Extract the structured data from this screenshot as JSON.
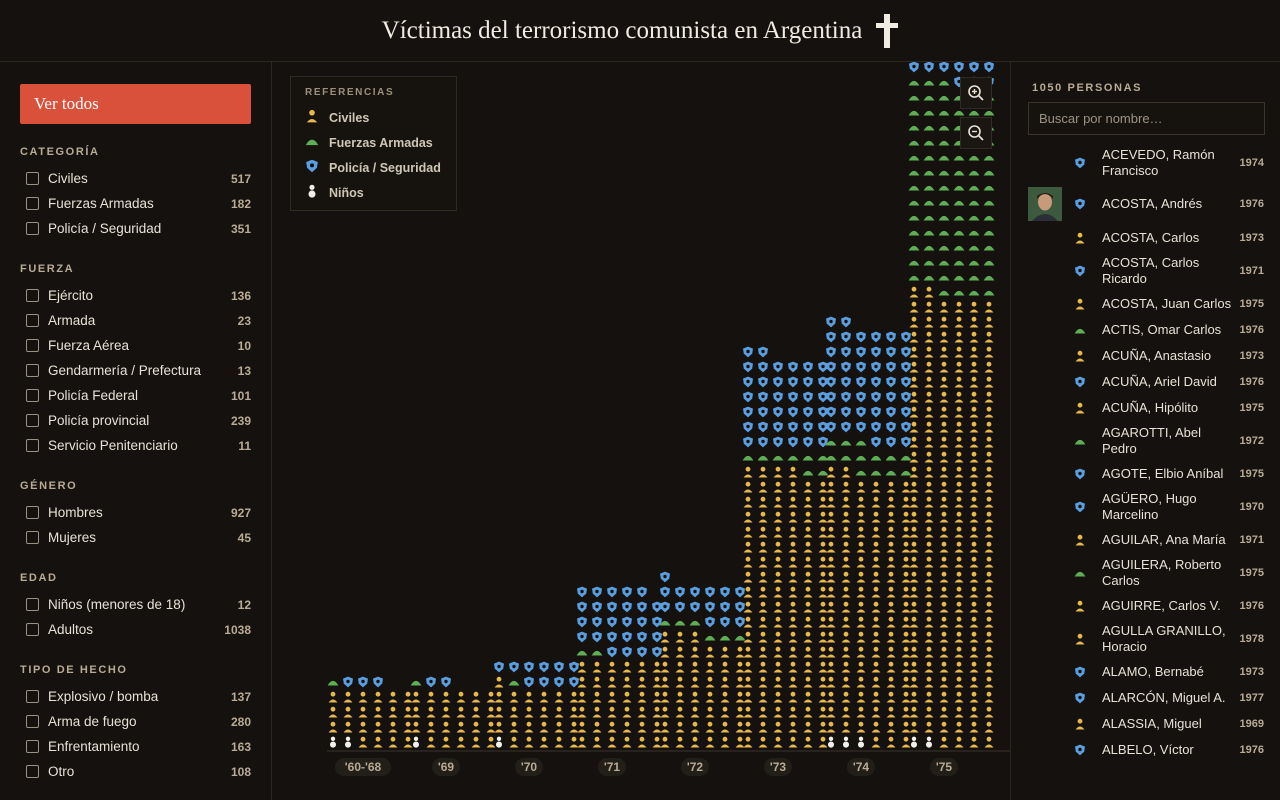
{
  "header": {
    "title": "Víctimas del terrorismo comunista en Argentina",
    "title_icon": "cross-icon"
  },
  "sidebar": {
    "show_all_label": "Ver todos",
    "groups": [
      {
        "title": "CATEGORÍA",
        "items": [
          {
            "label": "Civiles",
            "count": "517"
          },
          {
            "label": "Fuerzas Armadas",
            "count": "182"
          },
          {
            "label": "Policía / Seguridad",
            "count": "351"
          }
        ]
      },
      {
        "title": "FUERZA",
        "items": [
          {
            "label": "Ejército",
            "count": "136"
          },
          {
            "label": "Armada",
            "count": "23"
          },
          {
            "label": "Fuerza Aérea",
            "count": "10"
          },
          {
            "label": "Gendarmería / Prefectura",
            "count": "13"
          },
          {
            "label": "Policía Federal",
            "count": "101"
          },
          {
            "label": "Policía provincial",
            "count": "239"
          },
          {
            "label": "Servicio Penitenciario",
            "count": "11"
          }
        ]
      },
      {
        "title": "GÉNERO",
        "items": [
          {
            "label": "Hombres",
            "count": "927"
          },
          {
            "label": "Mujeres",
            "count": "45"
          }
        ]
      },
      {
        "title": "EDAD",
        "items": [
          {
            "label": "Niños (menores de 18)",
            "count": "12"
          },
          {
            "label": "Adultos",
            "count": "1038"
          }
        ]
      },
      {
        "title": "TIPO DE HECHO",
        "items": [
          {
            "label": "Explosivo / bomba",
            "count": "137"
          },
          {
            "label": "Arma de fuego",
            "count": "280"
          },
          {
            "label": "Enfrentamiento",
            "count": "163"
          },
          {
            "label": "Otro",
            "count": "108"
          }
        ]
      }
    ]
  },
  "legend": {
    "title": "REFERENCIAS",
    "items": [
      {
        "label": "Civiles",
        "icon": "civilian-icon",
        "color": "#e8b84a"
      },
      {
        "label": "Fuerzas Armadas",
        "icon": "helmet-icon",
        "color": "#5fae55"
      },
      {
        "label": "Policía / Seguridad",
        "icon": "police-badge-icon",
        "color": "#5b9ee0"
      },
      {
        "label": "Niños",
        "icon": "child-icon",
        "color": "#f2f0ea"
      }
    ]
  },
  "zoom": {
    "in_icon": "zoom-in-icon",
    "out_icon": "zoom-out-icon"
  },
  "chart_data": {
    "type": "bar",
    "stacked": true,
    "unit": "one icon per person",
    "categories": [
      "'60-'68",
      "'69",
      "'70",
      "'71",
      "'72",
      "'73",
      "'74",
      "'75"
    ],
    "series": [
      {
        "name": "Niños",
        "color": "#f2f0ea",
        "values": [
          2,
          1,
          1,
          0,
          0,
          0,
          3,
          2
        ]
      },
      {
        "name": "Civiles",
        "color": "#e8b84a",
        "values": [
          22,
          23,
          24,
          36,
          45,
          112,
          107,
          180
        ]
      },
      {
        "name": "Fuerzas Armadas",
        "color": "#5fae55",
        "values": [
          1,
          1,
          1,
          2,
          6,
          8,
          13,
          85
        ]
      },
      {
        "name": "Policía / Seguridad",
        "color": "#5b9ee0",
        "values": [
          3,
          2,
          10,
          27,
          16,
          38,
          47,
          70
        ]
      }
    ]
  },
  "people": {
    "count_label": "1050 PERSONAS",
    "search_placeholder": "Buscar por nombre…",
    "list": [
      {
        "name": "ACEVEDO, Ramón Francisco",
        "year": "1974",
        "cat": "police",
        "photo": false
      },
      {
        "name": "ACOSTA, Andrés",
        "year": "1976",
        "cat": "police",
        "photo": true
      },
      {
        "name": "ACOSTA, Carlos",
        "year": "1973",
        "cat": "civil",
        "photo": false
      },
      {
        "name": "ACOSTA, Carlos Ricardo",
        "year": "1971",
        "cat": "police",
        "photo": false
      },
      {
        "name": "ACOSTA, Juan Carlos",
        "year": "1975",
        "cat": "civil",
        "photo": false
      },
      {
        "name": "ACTIS, Omar Carlos",
        "year": "1976",
        "cat": "army",
        "photo": false
      },
      {
        "name": "ACUÑA, Anastasio",
        "year": "1973",
        "cat": "civil",
        "photo": false
      },
      {
        "name": "ACUÑA, Ariel David",
        "year": "1976",
        "cat": "police",
        "photo": false
      },
      {
        "name": "ACUÑA, Hipólito",
        "year": "1975",
        "cat": "civil",
        "photo": false
      },
      {
        "name": "AGAROTTI, Abel Pedro",
        "year": "1972",
        "cat": "army",
        "photo": false
      },
      {
        "name": "AGOTE, Elbio Aníbal",
        "year": "1975",
        "cat": "police",
        "photo": false
      },
      {
        "name": "AGÜERO, Hugo Marcelino",
        "year": "1970",
        "cat": "police",
        "photo": false
      },
      {
        "name": "AGUILAR, Ana María",
        "year": "1971",
        "cat": "civil",
        "photo": false
      },
      {
        "name": "AGUILERA, Roberto Carlos",
        "year": "1975",
        "cat": "army",
        "photo": false
      },
      {
        "name": "AGUIRRE, Carlos V.",
        "year": "1976",
        "cat": "civil",
        "photo": false
      },
      {
        "name": "AGULLA GRANILLO, Horacio",
        "year": "1978",
        "cat": "civil",
        "photo": false
      },
      {
        "name": "ALAMO, Bernabé",
        "year": "1973",
        "cat": "police",
        "photo": false
      },
      {
        "name": "ALARCÓN, Miguel A.",
        "year": "1977",
        "cat": "police",
        "photo": false
      },
      {
        "name": "ALASSIA, Miguel",
        "year": "1969",
        "cat": "civil",
        "photo": false
      },
      {
        "name": "ALBELO, Víctor",
        "year": "1976",
        "cat": "police",
        "photo": false
      }
    ]
  }
}
